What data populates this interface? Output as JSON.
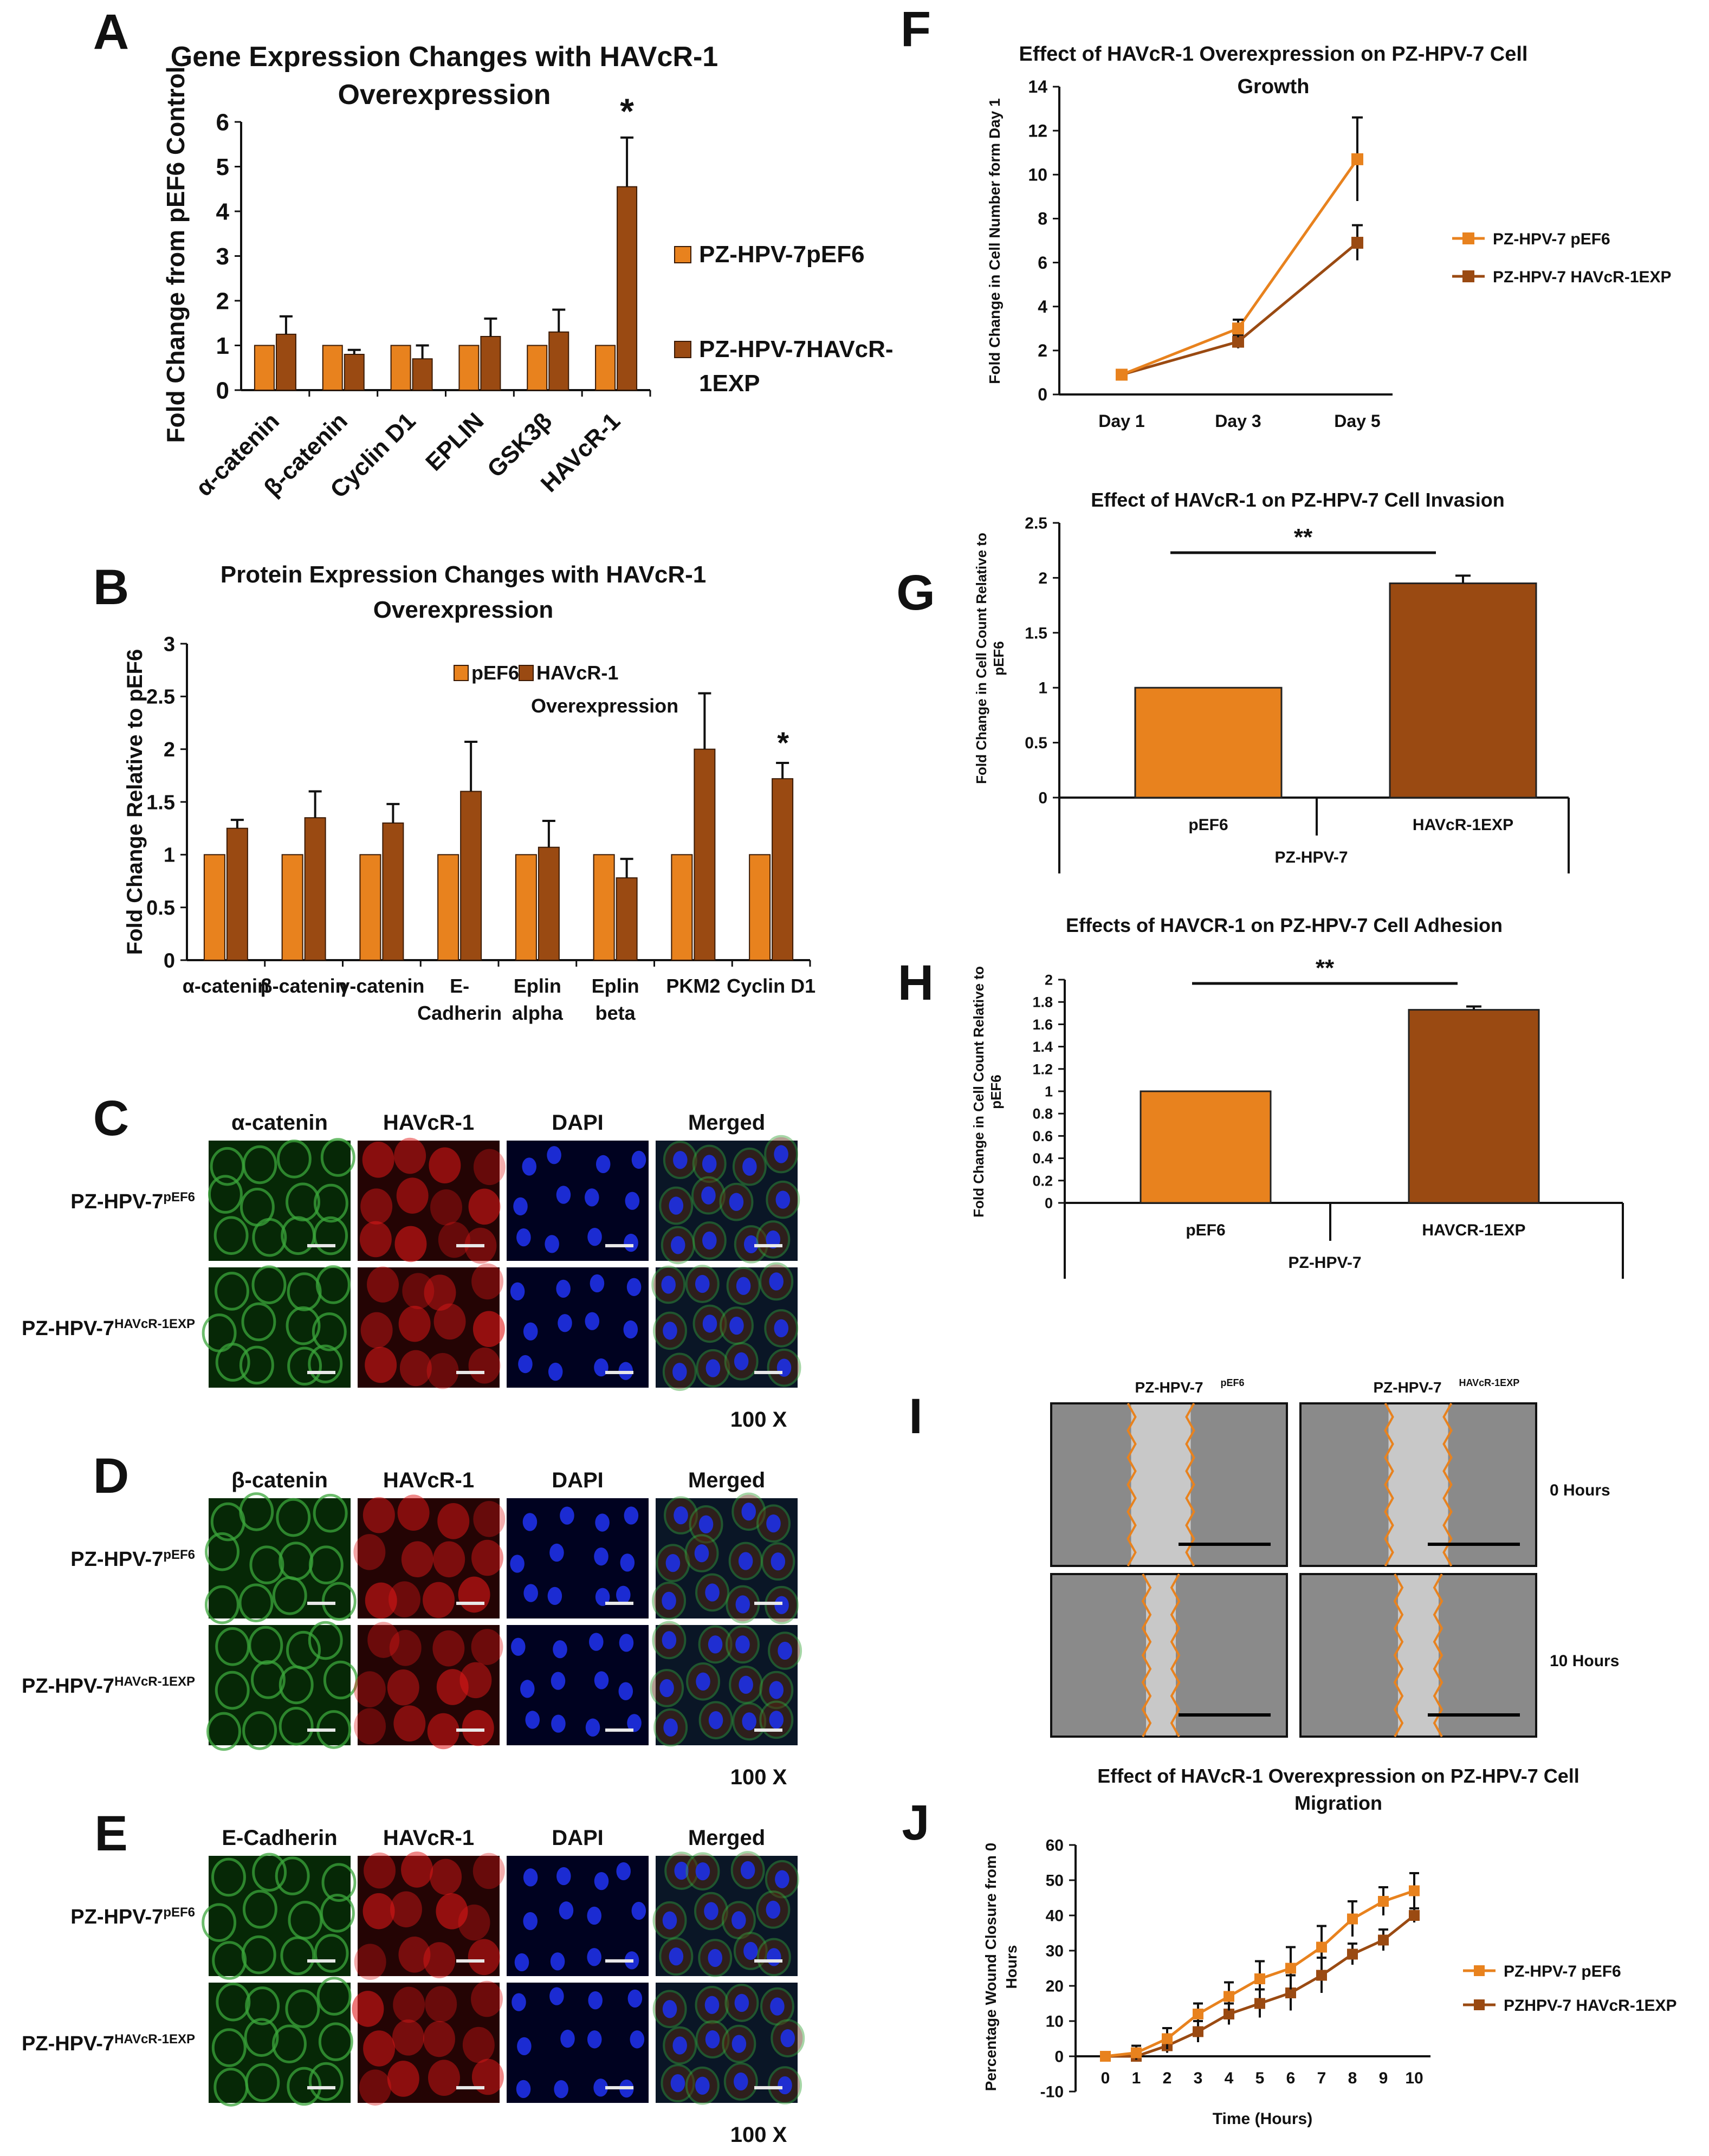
{
  "colors": {
    "pef6": "#E8821E",
    "havcr": "#9A4A12",
    "green": "#3BA53B",
    "red": "#E01818",
    "blue": "#1E30E6"
  },
  "panel_letters": [
    "A",
    "B",
    "C",
    "D",
    "E",
    "F",
    "G",
    "H",
    "I",
    "J"
  ],
  "chart_data": [
    {
      "id": "A",
      "type": "bar",
      "title": "Gene Expression Changes with HAVcR-1 Overexpression",
      "ylabel": "Fold Change from pEF6 Control",
      "xlabel": "",
      "ylim": [
        0,
        6
      ],
      "yticks": [
        "0",
        "1",
        "2",
        "3",
        "4",
        "5",
        "6"
      ],
      "categories": [
        "α-catenin",
        "β-catenin",
        "Cyclin D1",
        "EPLIN",
        "GSK3β",
        "HAVcR-1"
      ],
      "series": [
        {
          "name": "PZ-HPV-7pEF6",
          "values": [
            1,
            1,
            1,
            1,
            1,
            1
          ],
          "errors": [
            0,
            0,
            0,
            0,
            0,
            0
          ]
        },
        {
          "name": "PZ-HPV-7HAVcR-1EXP",
          "values": [
            1.25,
            0.8,
            0.7,
            1.2,
            1.3,
            4.55
          ],
          "errors": [
            0.4,
            0.1,
            0.3,
            0.4,
            0.5,
            1.1
          ]
        }
      ],
      "legend": [
        "PZ-HPV-7pEF6",
        "PZ-HPV-7HAVcR-",
        "1EXP"
      ],
      "annotation": "*"
    },
    {
      "id": "B",
      "type": "bar",
      "title": "Protein Expression Changes with HAVcR-1 Overexpression",
      "ylabel": "Fold Change Relative to pEF6",
      "xlabel": "",
      "ylim": [
        0,
        3
      ],
      "yticks": [
        "0",
        "0.5",
        "1",
        "1.5",
        "2",
        "2.5",
        "3"
      ],
      "categories": [
        "α-catenin",
        "β-catenin",
        "γ-catenin",
        "E-Cadherin",
        "Eplin alpha",
        "Eplin beta",
        "PKM2",
        "Cyclin D1"
      ],
      "category_lines": [
        [
          "α-catenin"
        ],
        [
          "β-catenin"
        ],
        [
          "γ-catenin"
        ],
        [
          "E-",
          "Cadherin"
        ],
        [
          "Eplin",
          "alpha"
        ],
        [
          "Eplin",
          "beta"
        ],
        [
          "PKM2"
        ],
        [
          "Cyclin D1"
        ]
      ],
      "series": [
        {
          "name": "pEF6",
          "values": [
            1,
            1,
            1,
            1,
            1,
            1,
            1,
            1
          ],
          "errors": [
            0,
            0,
            0,
            0,
            0,
            0,
            0,
            0
          ]
        },
        {
          "name": "HAVcR-1 Overexpression",
          "values": [
            1.25,
            1.35,
            1.3,
            1.6,
            1.07,
            0.78,
            2.0,
            1.72
          ],
          "errors": [
            0.08,
            0.25,
            0.18,
            0.47,
            0.25,
            0.18,
            0.53,
            0.15
          ]
        }
      ],
      "legend": [
        "pEF6",
        "HAVcR-1",
        "Overexpression"
      ],
      "annotation": "*"
    },
    {
      "id": "F",
      "type": "line",
      "title": "Effect of HAVcR-1 Overexpression on PZ-HPV-7 Cell Growth",
      "ylabel": "Fold Change in Cell Number form Day 1",
      "xlabel": "",
      "ylim": [
        0,
        14
      ],
      "yticks": [
        "0",
        "2",
        "4",
        "6",
        "8",
        "10",
        "12",
        "14"
      ],
      "categories": [
        "Day 1",
        "Day 3",
        "Day 5"
      ],
      "series": [
        {
          "name": "PZ-HPV-7 pEF6",
          "values": [
            0.9,
            3.0,
            10.7
          ],
          "errors": [
            0.1,
            0.4,
            1.9
          ]
        },
        {
          "name": "PZ-HPV-7 HAVcR-1EXP",
          "values": [
            0.9,
            2.4,
            6.9
          ],
          "errors": [
            0.1,
            0.3,
            0.8
          ]
        }
      ]
    },
    {
      "id": "G",
      "type": "bar",
      "title": "Effect of HAVcR-1 on PZ-HPV-7 Cell Invasion",
      "ylabel": "Fold Change in Cell Count Relative to pEF6",
      "xlabel": "PZ-HPV-7",
      "ylim": [
        0,
        2.5
      ],
      "yticks": [
        "0",
        "0.5",
        "1",
        "1.5",
        "2",
        "2.5"
      ],
      "categories": [
        "pEF6",
        "HAVcR-1EXP"
      ],
      "values": [
        1,
        1.95
      ],
      "errors": [
        0,
        0.07
      ],
      "annotation": "**"
    },
    {
      "id": "H",
      "type": "bar",
      "title": "Effects of HAVCR-1 on PZ-HPV-7 Cell Adhesion",
      "ylabel": "Fold Change in Cell Count Relative to pEF6",
      "xlabel": "PZ-HPV-7",
      "ylim": [
        0,
        2
      ],
      "yticks": [
        "0",
        "0.2",
        "0.4",
        "0.6",
        "0.8",
        "1",
        "1.2",
        "1.4",
        "1.6",
        "1.8",
        "2"
      ],
      "categories": [
        "pEF6",
        "HAVCR-1EXP"
      ],
      "values": [
        1,
        1.73
      ],
      "errors": [
        0,
        0.03
      ],
      "annotation": "**"
    },
    {
      "id": "J",
      "type": "line",
      "title": "Effect of HAVcR-1 Overexpression on PZ-HPV-7 Cell Migration",
      "ylabel": "Percentage Wound Closure from 0 Hours",
      "xlabel": "Time (Hours)",
      "ylim": [
        -10,
        60
      ],
      "yticks": [
        "-10",
        "0",
        "10",
        "20",
        "30",
        "40",
        "50",
        "60"
      ],
      "x": [
        0,
        1,
        2,
        3,
        4,
        5,
        6,
        7,
        8,
        9,
        10
      ],
      "series": [
        {
          "name": "PZ-HPV-7 pEF6",
          "values": [
            0,
            1,
            5,
            12,
            17,
            22,
            25,
            31,
            39,
            44,
            47
          ],
          "errors": [
            1,
            2,
            3,
            3,
            4,
            5,
            6,
            6,
            5,
            4,
            5
          ]
        },
        {
          "name": "PZHPV-7 HAVcR-1EXP",
          "values": [
            0,
            0,
            3,
            7,
            12,
            15,
            18,
            23,
            29,
            33,
            40
          ],
          "errors": [
            1,
            1,
            2,
            3,
            3,
            4,
            5,
            5,
            3,
            3,
            2
          ]
        }
      ]
    }
  ],
  "micrographs": {
    "C": {
      "columns": [
        "α-catenin",
        "HAVcR-1",
        "DAPI",
        "Merged"
      ],
      "rows": [
        "PZ-HPV-7pEF6",
        "PZ-HPV-7HAVcR-1EXP"
      ],
      "magnification": "100 X"
    },
    "D": {
      "columns": [
        "β-catenin",
        "HAVcR-1",
        "DAPI",
        "Merged"
      ],
      "rows": [
        "PZ-HPV-7pEF6",
        "PZ-HPV-7HAVcR-1EXP"
      ],
      "magnification": "100 X"
    },
    "E": {
      "columns": [
        "E-Cadherin",
        "HAVcR-1",
        "DAPI",
        "Merged"
      ],
      "rows": [
        "PZ-HPV-7pEF6",
        "PZ-HPV-7HAVcR-1EXP"
      ],
      "magnification": "100 X"
    }
  },
  "row_labels": {
    "base": "PZ-HPV-7",
    "sup_pef6": "pEF6",
    "sup_havcr": "HAVcR-1EXP"
  },
  "wound": {
    "columns": [
      "PZ-HPV-7pEF6",
      "PZ-HPV-7HAVcR-1EXP"
    ],
    "rows": [
      "0 Hours",
      "10 Hours"
    ]
  }
}
